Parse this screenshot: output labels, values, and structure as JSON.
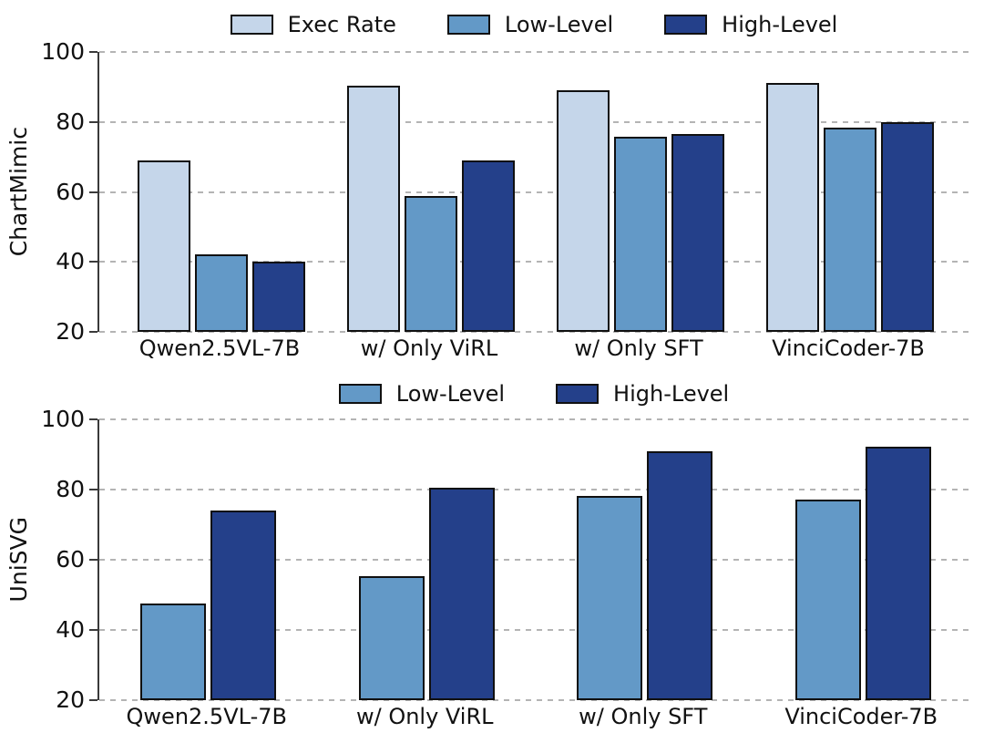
{
  "colors": {
    "exec_rate": "#c5d6ea",
    "low_level": "#6399c7",
    "high_level": "#24408a",
    "bar_border": "#101010",
    "grid": "#b4b4b4",
    "spine": "#3a3a3a",
    "text": "#111111",
    "background": "#ffffff"
  },
  "chart_data": [
    {
      "type": "bar",
      "panel": "top",
      "title": "",
      "ylabel": "ChartMimic",
      "xlabel": "",
      "categories": [
        "Qwen2.5VL-7B",
        "w/ Only ViRL",
        "w/ Only SFT",
        "VinciCoder-7B"
      ],
      "series": [
        {
          "name": "Exec Rate",
          "color_key": "exec_rate",
          "values": [
            68.9,
            90.3,
            89.0,
            91.2
          ]
        },
        {
          "name": "Low-Level",
          "color_key": "low_level",
          "values": [
            42.2,
            58.8,
            75.8,
            78.4
          ]
        },
        {
          "name": "High-Level",
          "color_key": "high_level",
          "values": [
            40.1,
            68.9,
            76.6,
            79.9
          ]
        }
      ],
      "ylim": [
        20,
        100
      ],
      "yticks": [
        100,
        80,
        60,
        40,
        20
      ],
      "grid": "horizontal-dashed",
      "legend_position": "top-center"
    },
    {
      "type": "bar",
      "panel": "bottom",
      "title": "",
      "ylabel": "UniSVG",
      "xlabel": "",
      "categories": [
        "Qwen2.5VL-7B",
        "w/ Only ViRL",
        "w/ Only SFT",
        "VinciCoder-7B"
      ],
      "series": [
        {
          "name": "Low-Level",
          "color_key": "low_level",
          "values": [
            47.5,
            55.3,
            78.3,
            77.1
          ]
        },
        {
          "name": "High-Level",
          "color_key": "high_level",
          "values": [
            74.0,
            80.5,
            91.0,
            92.2
          ]
        }
      ],
      "ylim": [
        20,
        100
      ],
      "yticks": [
        100,
        80,
        60,
        40,
        20
      ],
      "grid": "horizontal-dashed",
      "legend_position": "top-center"
    }
  ]
}
